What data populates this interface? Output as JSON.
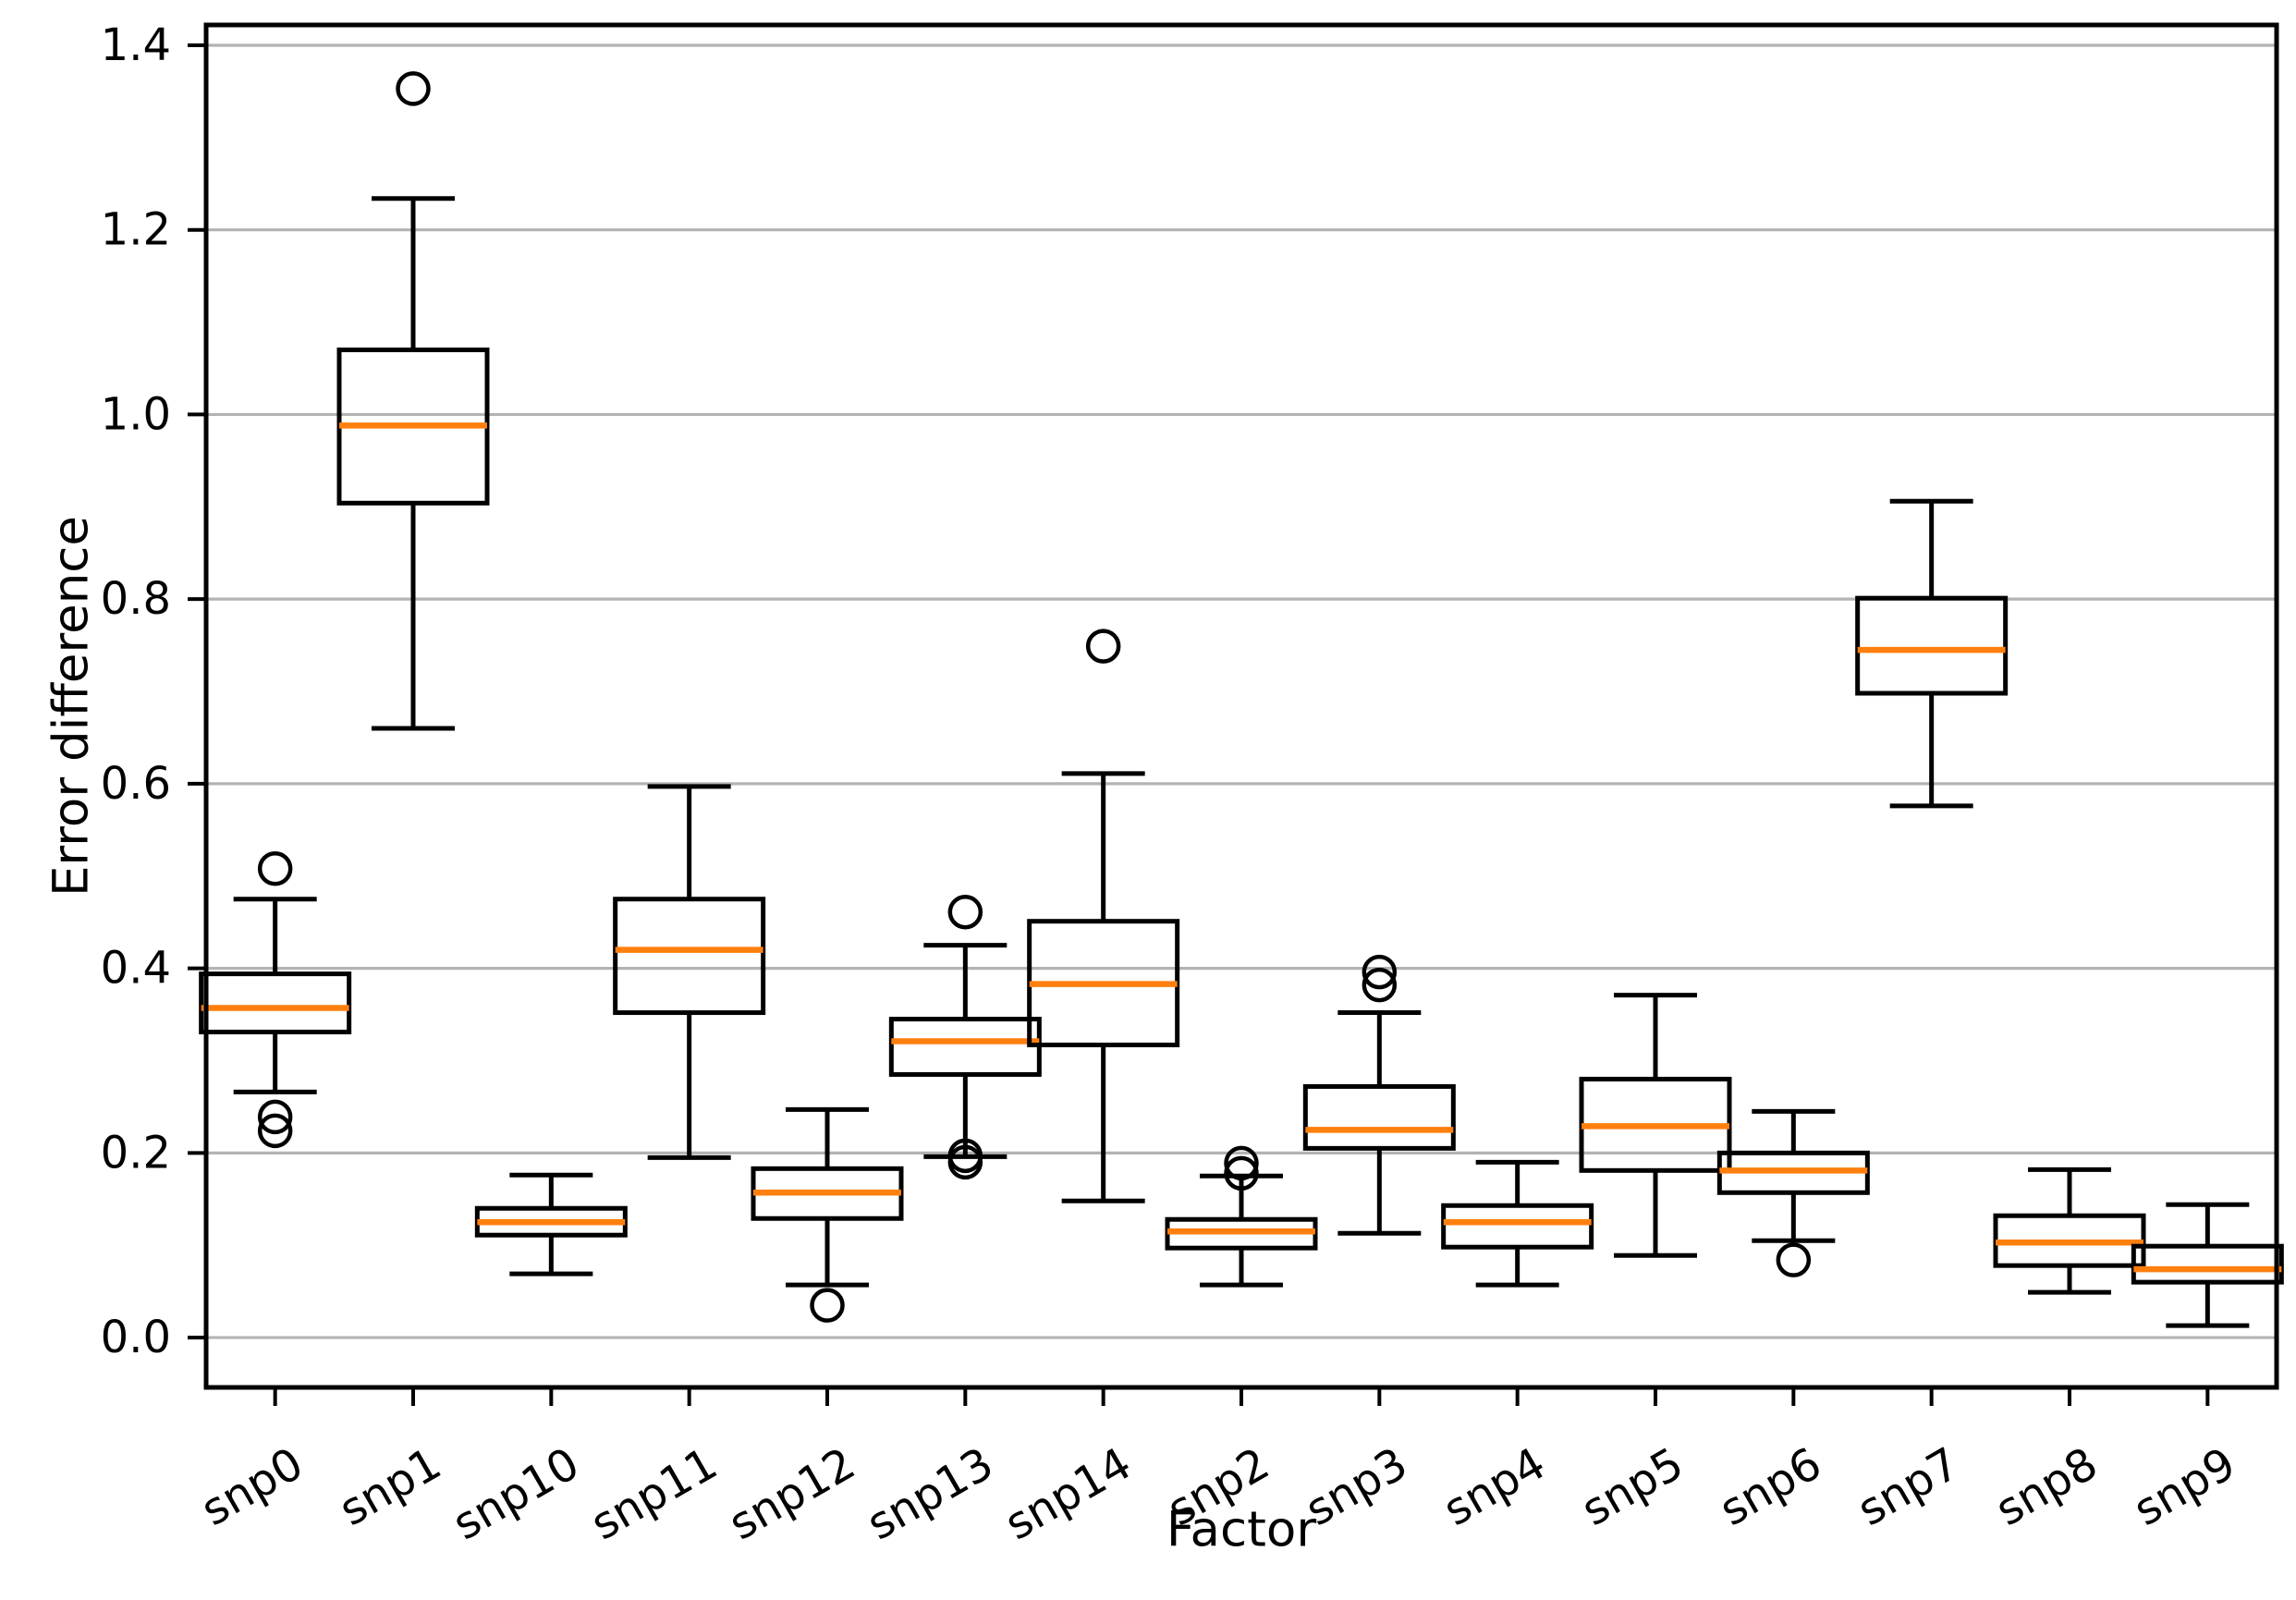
{
  "chart_data": {
    "type": "boxplot",
    "title": "",
    "xlabel": "Factor",
    "ylabel": "Error difference",
    "categories": [
      "snp0",
      "snp1",
      "snp10",
      "snp11",
      "snp12",
      "snp13",
      "snp14",
      "snp2",
      "snp3",
      "snp4",
      "snp5",
      "snp6",
      "snp7",
      "snp8",
      "snp9"
    ],
    "boxes": [
      {
        "label": "snp0",
        "whislo": 0.266,
        "q1": 0.331,
        "med": 0.357,
        "q3": 0.394,
        "whishi": 0.475,
        "fliers": [
          0.508,
          0.239,
          0.224
        ]
      },
      {
        "label": "snp1",
        "whislo": 0.66,
        "q1": 0.904,
        "med": 0.988,
        "q3": 1.07,
        "whishi": 1.234,
        "fliers": [
          1.353
        ]
      },
      {
        "label": "snp10",
        "whislo": 0.069,
        "q1": 0.111,
        "med": 0.125,
        "q3": 0.14,
        "whishi": 0.176,
        "fliers": []
      },
      {
        "label": "snp11",
        "whislo": 0.195,
        "q1": 0.352,
        "med": 0.42,
        "q3": 0.475,
        "whishi": 0.597,
        "fliers": []
      },
      {
        "label": "snp12",
        "whislo": 0.057,
        "q1": 0.129,
        "med": 0.157,
        "q3": 0.183,
        "whishi": 0.247,
        "fliers": [
          0.035
        ]
      },
      {
        "label": "snp13",
        "whislo": 0.196,
        "q1": 0.285,
        "med": 0.321,
        "q3": 0.345,
        "whishi": 0.425,
        "fliers": [
          0.461,
          0.197,
          0.19
        ]
      },
      {
        "label": "snp14",
        "whislo": 0.148,
        "q1": 0.317,
        "med": 0.383,
        "q3": 0.451,
        "whishi": 0.611,
        "fliers": [
          0.749
        ]
      },
      {
        "label": "snp2",
        "whislo": 0.057,
        "q1": 0.097,
        "med": 0.115,
        "q3": 0.128,
        "whishi": 0.175,
        "fliers": [
          0.189,
          0.178
        ]
      },
      {
        "label": "snp3",
        "whislo": 0.113,
        "q1": 0.205,
        "med": 0.225,
        "q3": 0.272,
        "whishi": 0.352,
        "fliers": [
          0.396,
          0.382
        ]
      },
      {
        "label": "snp4",
        "whislo": 0.057,
        "q1": 0.098,
        "med": 0.125,
        "q3": 0.143,
        "whishi": 0.19,
        "fliers": []
      },
      {
        "label": "snp5",
        "whislo": 0.089,
        "q1": 0.181,
        "med": 0.229,
        "q3": 0.28,
        "whishi": 0.371,
        "fliers": []
      },
      {
        "label": "snp6",
        "whislo": 0.105,
        "q1": 0.157,
        "med": 0.181,
        "q3": 0.2,
        "whishi": 0.245,
        "fliers": [
          0.084
        ]
      },
      {
        "label": "snp7",
        "whislo": 0.576,
        "q1": 0.698,
        "med": 0.745,
        "q3": 0.801,
        "whishi": 0.906,
        "fliers": []
      },
      {
        "label": "snp8",
        "whislo": 0.049,
        "q1": 0.078,
        "med": 0.103,
        "q3": 0.132,
        "whishi": 0.182,
        "fliers": []
      },
      {
        "label": "snp9",
        "whislo": 0.013,
        "q1": 0.06,
        "med": 0.074,
        "q3": 0.099,
        "whishi": 0.144,
        "fliers": []
      }
    ],
    "yticks": [
      0.0,
      0.2,
      0.4,
      0.6,
      0.8,
      1.0,
      1.2,
      1.4
    ],
    "ytick_labels": [
      "0.0",
      "0.2",
      "0.4",
      "0.6",
      "0.8",
      "1.0",
      "1.2",
      "1.4"
    ],
    "ylim": [
      -0.054,
      1.422
    ],
    "grid": true,
    "legend": "none",
    "xtick_rotation": 30,
    "colors": {
      "median": "#ff7f0e",
      "box": "#000000",
      "whisker": "#000000",
      "flier": "#000000",
      "grid": "#b3b3b3",
      "spine": "#000000",
      "text": "#000000",
      "background": "#ffffff"
    }
  }
}
